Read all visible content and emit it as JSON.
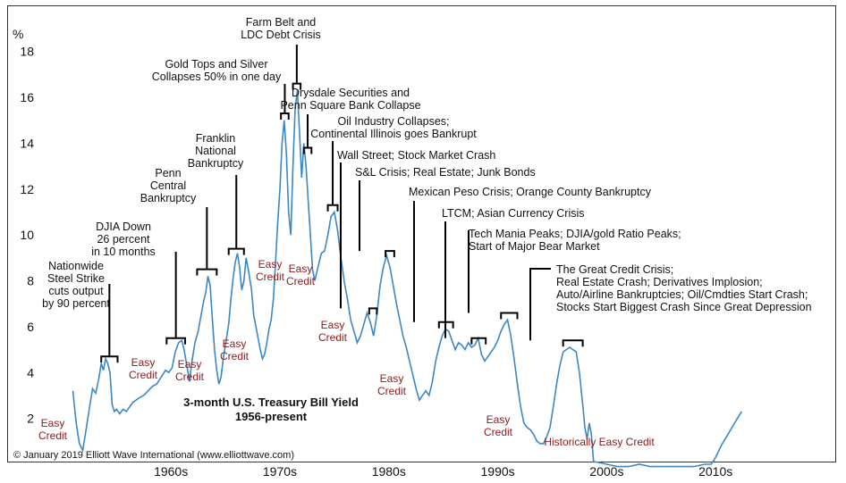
{
  "chart_data": {
    "type": "line",
    "title": "3-month U.S. Treasury Bill Yield",
    "subtitle": "1956-present",
    "ylabel": "%",
    "ylim": [
      0,
      19
    ],
    "xlim": [
      1953,
      2025
    ],
    "yticks": [
      2,
      4,
      6,
      8,
      10,
      12,
      14,
      16,
      18
    ],
    "xticks": [
      {
        "label": "1960s",
        "value": 1965
      },
      {
        "label": "1970s",
        "value": 1975
      },
      {
        "label": "1980s",
        "value": 1985
      },
      {
        "label": "1990s",
        "value": 1995
      },
      {
        "label": "2000s",
        "value": 2005
      },
      {
        "label": "2010s",
        "value": 2015
      }
    ],
    "copyright": "© January 2019 Elliott Wave International (www.elliottwave.com)",
    "colors": {
      "line": "#3b87c4",
      "credit": "#8b1a1a",
      "text": "#111111"
    },
    "series": [
      {
        "values": [
          [
            1956.0,
            3.2
          ],
          [
            1956.3,
            1.8
          ],
          [
            1956.6,
            0.9
          ],
          [
            1956.9,
            0.6
          ],
          [
            1957.2,
            1.5
          ],
          [
            1957.5,
            2.4
          ],
          [
            1957.8,
            3.3
          ],
          [
            1958.1,
            3.1
          ],
          [
            1958.4,
            3.8
          ],
          [
            1958.6,
            4.4
          ],
          [
            1958.8,
            4.1
          ],
          [
            1959.0,
            4.6
          ],
          [
            1959.2,
            4.4
          ],
          [
            1959.4,
            4.0
          ],
          [
            1959.6,
            2.6
          ],
          [
            1959.8,
            2.3
          ],
          [
            1960.0,
            2.4
          ],
          [
            1960.3,
            2.2
          ],
          [
            1960.6,
            2.4
          ],
          [
            1960.9,
            2.3
          ],
          [
            1961.2,
            2.5
          ],
          [
            1961.5,
            2.7
          ],
          [
            1961.8,
            2.8
          ],
          [
            1962.1,
            2.9
          ],
          [
            1962.5,
            3.0
          ],
          [
            1962.9,
            3.2
          ],
          [
            1963.3,
            3.4
          ],
          [
            1963.7,
            3.5
          ],
          [
            1964.1,
            3.8
          ],
          [
            1964.5,
            4.1
          ],
          [
            1964.8,
            4.0
          ],
          [
            1965.1,
            4.2
          ],
          [
            1965.4,
            4.9
          ],
          [
            1965.7,
            5.3
          ],
          [
            1966.0,
            5.4
          ],
          [
            1966.2,
            5.0
          ],
          [
            1966.5,
            4.2
          ],
          [
            1966.7,
            3.6
          ],
          [
            1966.9,
            4.4
          ],
          [
            1967.2,
            5.3
          ],
          [
            1967.5,
            5.8
          ],
          [
            1967.8,
            6.6
          ],
          [
            1968.0,
            7.1
          ],
          [
            1968.2,
            7.5
          ],
          [
            1968.4,
            8.2
          ],
          [
            1968.6,
            7.8
          ],
          [
            1968.8,
            6.3
          ],
          [
            1969.0,
            5.0
          ],
          [
            1969.2,
            4.1
          ],
          [
            1969.4,
            3.5
          ],
          [
            1969.6,
            3.8
          ],
          [
            1969.8,
            4.6
          ],
          [
            1970.0,
            5.2
          ],
          [
            1970.3,
            6.1
          ],
          [
            1970.5,
            7.2
          ],
          [
            1970.7,
            8.1
          ],
          [
            1970.9,
            8.8
          ],
          [
            1971.1,
            9.2
          ],
          [
            1971.3,
            8.6
          ],
          [
            1971.5,
            7.6
          ],
          [
            1971.7,
            8.0
          ],
          [
            1971.9,
            9.0
          ],
          [
            1972.1,
            8.5
          ],
          [
            1972.4,
            7.6
          ],
          [
            1972.6,
            6.5
          ],
          [
            1972.8,
            6.0
          ],
          [
            1973.0,
            5.5
          ],
          [
            1973.2,
            5.0
          ],
          [
            1973.4,
            4.6
          ],
          [
            1973.6,
            4.8
          ],
          [
            1973.8,
            5.3
          ],
          [
            1974.0,
            5.9
          ],
          [
            1974.2,
            6.3
          ],
          [
            1974.4,
            7.2
          ],
          [
            1974.6,
            8.8
          ],
          [
            1974.8,
            10.5
          ],
          [
            1975.0,
            12.0
          ],
          [
            1975.2,
            14.0
          ],
          [
            1975.4,
            15.0
          ],
          [
            1975.6,
            13.5
          ],
          [
            1975.8,
            11.0
          ],
          [
            1976.0,
            10.0
          ],
          [
            1976.2,
            13.0
          ],
          [
            1976.4,
            15.5
          ],
          [
            1976.6,
            16.3
          ],
          [
            1976.8,
            14.5
          ],
          [
            1977.0,
            12.5
          ],
          [
            1977.2,
            14.0
          ],
          [
            1977.4,
            13.0
          ],
          [
            1977.6,
            11.5
          ],
          [
            1977.8,
            10.0
          ],
          [
            1978.0,
            8.5
          ],
          [
            1978.2,
            8.0
          ],
          [
            1978.5,
            8.6
          ],
          [
            1978.8,
            9.2
          ],
          [
            1979.1,
            9.3
          ],
          [
            1979.4,
            10.0
          ],
          [
            1979.7,
            10.8
          ],
          [
            1980.0,
            11.0
          ],
          [
            1980.3,
            10.2
          ],
          [
            1980.6,
            9.0
          ],
          [
            1980.9,
            8.0
          ],
          [
            1981.2,
            7.2
          ],
          [
            1981.5,
            6.3
          ],
          [
            1981.8,
            5.8
          ],
          [
            1982.1,
            5.3
          ],
          [
            1982.4,
            5.6
          ],
          [
            1982.7,
            6.1
          ],
          [
            1983.0,
            6.6
          ],
          [
            1983.3,
            6.2
          ],
          [
            1983.6,
            5.6
          ],
          [
            1983.9,
            6.5
          ],
          [
            1984.2,
            7.8
          ],
          [
            1984.5,
            8.6
          ],
          [
            1984.8,
            9.1
          ],
          [
            1985.1,
            8.6
          ],
          [
            1985.4,
            7.8
          ],
          [
            1985.7,
            7.0
          ],
          [
            1986.0,
            6.3
          ],
          [
            1986.3,
            5.6
          ],
          [
            1986.6,
            5.1
          ],
          [
            1986.9,
            4.5
          ],
          [
            1987.2,
            3.9
          ],
          [
            1987.5,
            3.3
          ],
          [
            1987.8,
            2.8
          ],
          [
            1988.1,
            3.0
          ],
          [
            1988.4,
            3.2
          ],
          [
            1988.7,
            3.0
          ],
          [
            1989.0,
            3.6
          ],
          [
            1989.3,
            4.5
          ],
          [
            1989.6,
            5.1
          ],
          [
            1989.9,
            5.6
          ],
          [
            1990.2,
            5.9
          ],
          [
            1990.5,
            5.8
          ],
          [
            1990.8,
            5.4
          ],
          [
            1991.1,
            5.0
          ],
          [
            1991.4,
            5.3
          ],
          [
            1991.7,
            5.2
          ],
          [
            1992.0,
            5.0
          ],
          [
            1992.3,
            5.3
          ],
          [
            1992.6,
            5.1
          ],
          [
            1992.9,
            5.2
          ],
          [
            1993.2,
            5.5
          ],
          [
            1993.5,
            4.8
          ],
          [
            1993.8,
            4.5
          ],
          [
            1994.1,
            4.7
          ],
          [
            1994.4,
            4.9
          ],
          [
            1994.7,
            5.1
          ],
          [
            1995.0,
            5.4
          ],
          [
            1995.3,
            5.8
          ],
          [
            1995.6,
            6.1
          ],
          [
            1995.9,
            6.3
          ],
          [
            1996.2,
            5.6
          ],
          [
            1996.5,
            4.6
          ],
          [
            1996.8,
            3.5
          ],
          [
            1997.1,
            2.5
          ],
          [
            1997.4,
            1.8
          ],
          [
            1997.7,
            1.6
          ],
          [
            1998.0,
            1.5
          ],
          [
            1998.3,
            1.3
          ],
          [
            1998.6,
            1.0
          ],
          [
            1998.9,
            0.9
          ],
          [
            1999.2,
            0.9
          ],
          [
            1999.5,
            1.2
          ],
          [
            1999.8,
            1.6
          ],
          [
            2000.1,
            2.5
          ],
          [
            2000.4,
            3.5
          ],
          [
            2000.7,
            4.3
          ],
          [
            2001.0,
            4.9
          ],
          [
            2001.3,
            5.0
          ],
          [
            2001.6,
            5.1
          ],
          [
            2001.9,
            5.0
          ],
          [
            2002.2,
            4.9
          ],
          [
            2002.5,
            4.0
          ],
          [
            2002.8,
            2.6
          ],
          [
            2003.0,
            1.6
          ],
          [
            2003.2,
            1.1
          ],
          [
            2003.4,
            1.8
          ],
          [
            2003.6,
            1.3
          ],
          [
            2003.8,
            0.1
          ],
          [
            2004.0,
            0.1
          ],
          [
            2005,
            0.0
          ],
          [
            2006,
            -0.1
          ],
          [
            2007,
            -0.1
          ],
          [
            2008,
            0.0
          ],
          [
            2009,
            -0.1
          ],
          [
            2010,
            -0.1
          ],
          [
            2011,
            -0.1
          ],
          [
            2012,
            -0.1
          ],
          [
            2013,
            -0.1
          ],
          [
            2014,
            0.0
          ],
          [
            2014.6,
            0.0
          ],
          [
            2015.0,
            0.3
          ],
          [
            2015.5,
            0.8
          ],
          [
            2016.0,
            1.2
          ],
          [
            2016.5,
            1.6
          ],
          [
            2017.0,
            2.0
          ],
          [
            2017.4,
            2.3
          ]
        ]
      }
    ],
    "annotations": [
      {
        "lines": [
          "Nationwide",
          "Steel Strike",
          "cuts output",
          "by 90 percent"
        ],
        "bracket": [
          1958.6,
          1960.1,
          4.7
        ]
      },
      {
        "lines": [
          "DJIA Down",
          "26 percent",
          "in 10 months"
        ],
        "bracket": [
          1964.6,
          1966.3,
          5.5
        ]
      },
      {
        "lines": [
          "Penn",
          "Central",
          "Bankruptcy"
        ],
        "bracket": [
          1967.4,
          1969.2,
          8.5
        ]
      },
      {
        "lines": [
          "Franklin",
          "National",
          "Bankruptcy"
        ],
        "bracket": [
          1970.3,
          1971.7,
          9.4
        ]
      },
      {
        "lines": [
          "Gold Tops and Silver",
          "Collapses 50% in one day"
        ],
        "bracket": [
          1975.1,
          1975.8,
          15.3
        ]
      },
      {
        "lines": [
          "Farm Belt and",
          "LDC Debt Crisis"
        ],
        "bracket": [
          1976.2,
          1976.9,
          16.6
        ]
      },
      {
        "lines": [
          "Drysdale Securities and",
          "Penn Square Bank Collapse"
        ],
        "bracket": [
          1977.2,
          1977.9,
          13.8
        ]
      },
      {
        "lines": [
          "Oil Industry Collapses;",
          "Continental Illinois goes Bankrupt"
        ],
        "bracket": [
          1979.4,
          1980.3,
          11.3
        ]
      },
      {
        "lines": [
          "Wall Street; Stock Market Crash"
        ],
        "bracket": [
          1983.2,
          1983.9,
          6.8
        ]
      },
      {
        "lines": [
          "S&L Crisis; Real Estate; Junk Bonds"
        ],
        "bracket": [
          1984.7,
          1985.5,
          9.3
        ]
      },
      {
        "lines": [
          "Mexican Peso Crisis; Orange County Bankruptcy"
        ],
        "bracket": [
          1989.6,
          1990.9,
          6.2
        ]
      },
      {
        "lines": [
          "LTCM; Asian Currency Crisis"
        ],
        "bracket": [
          1992.6,
          1993.9,
          5.5
        ]
      },
      {
        "lines": [
          "Tech Mania Peaks; DJIA/gold Ratio Peaks;",
          "Start of Major Bear Market"
        ],
        "bracket": [
          1995.3,
          1996.8,
          6.6
        ]
      },
      {
        "lines": [
          "The Great Credit Crisis;",
          "Real Estate Crash; Derivatives Implosion;",
          "Auto/Airline Bankruptcies; Oil/Cmdties Start Crash;",
          "Stocks Start Biggest Crash Since Great Depression"
        ],
        "bracket": [
          2001.0,
          2002.8,
          5.4
        ]
      }
    ],
    "credit_labels": [
      {
        "lines": [
          "Easy",
          "Credit"
        ]
      },
      {
        "lines": [
          "Easy",
          "Credit"
        ]
      },
      {
        "lines": [
          "Easy",
          "Credit"
        ]
      },
      {
        "lines": [
          "Easy",
          "Credit"
        ]
      },
      {
        "lines": [
          "Easy",
          "Credit"
        ]
      },
      {
        "lines": [
          "Easy",
          "Credit"
        ]
      },
      {
        "lines": [
          "Easy",
          "Credit"
        ]
      },
      {
        "lines": [
          "Easy",
          "Credit"
        ]
      },
      {
        "lines": [
          "Easy",
          "Credit"
        ]
      },
      {
        "lines": [
          "Historically Easy Credit"
        ]
      }
    ]
  }
}
